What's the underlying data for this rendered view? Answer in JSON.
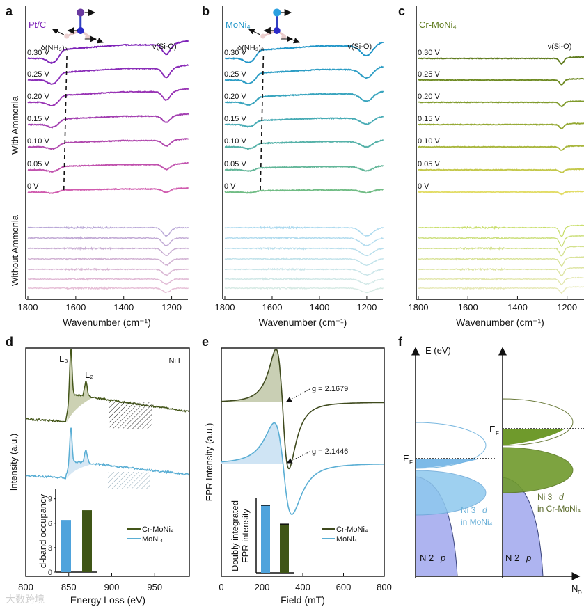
{
  "panel_labels": [
    "a",
    "b",
    "c",
    "d",
    "e",
    "f"
  ],
  "watermark": "大数跨境",
  "chart_data": [
    {
      "id": "a",
      "type": "line",
      "title": "Pt/C",
      "xlabel": "Wavenumber (cm⁻¹)",
      "xlim": [
        1800,
        1130
      ],
      "xticks": [
        "1800",
        "1600",
        "1400",
        "1200"
      ],
      "group_labels": [
        "With Ammonia",
        "Without Ammonia"
      ],
      "annotations": {
        "nh3": "δ(NH₃)ₐ",
        "sio": "ν(Si-O)"
      },
      "with_ammonia": [
        {
          "name": "0.30 V",
          "color": "#7d22b8",
          "step": 13,
          "dip": 14
        },
        {
          "name": "0.25 V",
          "color": "#8a2cb8",
          "step": 11,
          "dip": 13
        },
        {
          "name": "0.20 V",
          "color": "#9833b4",
          "step": 10,
          "dip": 12
        },
        {
          "name": "0.15 V",
          "color": "#a23db0",
          "step": 8,
          "dip": 9
        },
        {
          "name": "0.10 V",
          "color": "#b047ad",
          "step": 6,
          "dip": 8
        },
        {
          "name": "0.05 V",
          "color": "#c050ad",
          "step": 5,
          "dip": 7
        },
        {
          "name": "0 V",
          "color": "#d05aae",
          "step": 3,
          "dip": 5
        }
      ],
      "without_ammonia": [
        {
          "color": "#b8a6d6",
          "dip": 12
        },
        {
          "color": "#c0a8d4",
          "dip": 11
        },
        {
          "color": "#c8acd2",
          "dip": 10
        },
        {
          "color": "#d0b0d2",
          "dip": 9
        },
        {
          "color": "#d8b4d2",
          "dip": 8
        },
        {
          "color": "#e0b8d4",
          "dip": 7
        },
        {
          "color": "#e6bed6",
          "dip": 6
        }
      ]
    },
    {
      "id": "b",
      "type": "line",
      "title": "MoNi₄",
      "xlabel": "Wavenumber (cm⁻¹)",
      "xlim": [
        1800,
        1130
      ],
      "xticks": [
        "1800",
        "1600",
        "1400",
        "1200"
      ],
      "annotations": {
        "nh3": "δ(NH₃)ₐ",
        "sio": "ν(Si-O)"
      },
      "with_ammonia": [
        {
          "name": "0.30 V",
          "color": "#1f95c8",
          "step": 12,
          "dip": 15
        },
        {
          "name": "0.25 V",
          "color": "#2a9cc4",
          "step": 10,
          "dip": 13
        },
        {
          "name": "0.20 V",
          "color": "#36a3bd",
          "step": 8,
          "dip": 11
        },
        {
          "name": "0.15 V",
          "color": "#45aab4",
          "step": 6,
          "dip": 9
        },
        {
          "name": "0.10 V",
          "color": "#55b1a8",
          "step": 5,
          "dip": 8
        },
        {
          "name": "0.05 V",
          "color": "#62b698",
          "step": 3,
          "dip": 6
        },
        {
          "name": "0 V",
          "color": "#70bc84",
          "step": 2,
          "dip": 4
        }
      ],
      "without_ammonia": [
        {
          "color": "#a8d8ee",
          "dip": 12
        },
        {
          "color": "#b0dbee",
          "dip": 11
        },
        {
          "color": "#b8deec",
          "dip": 10
        },
        {
          "color": "#c0e2ea",
          "dip": 9
        },
        {
          "color": "#c8e4e8",
          "dip": 8
        },
        {
          "color": "#cfe7e6",
          "dip": 7
        },
        {
          "color": "#d6eae4",
          "dip": 6
        }
      ]
    },
    {
      "id": "c",
      "type": "line",
      "title": "Cr-MoNi₄",
      "xlabel": "Wavenumber (cm⁻¹)",
      "xlim": [
        1800,
        1130
      ],
      "xticks": [
        "1800",
        "1600",
        "1400",
        "1200"
      ],
      "annotations": {
        "sio": "ν(Si-O)"
      },
      "with_ammonia": [
        {
          "name": "0.30 V",
          "color": "#5e7a1c",
          "step": 0,
          "dip": 8
        },
        {
          "name": "0.25 V",
          "color": "#6e8a22",
          "step": 0,
          "dip": 7
        },
        {
          "name": "0.20 V",
          "color": "#7f9a2a",
          "step": 0,
          "dip": 6
        },
        {
          "name": "0.15 V",
          "color": "#94a832",
          "step": 0,
          "dip": 6
        },
        {
          "name": "0.10 V",
          "color": "#a8b63c",
          "step": 0,
          "dip": 5
        },
        {
          "name": "0.05 V",
          "color": "#c4c84a",
          "step": 0,
          "dip": 4
        },
        {
          "name": "0 V",
          "color": "#e2dc66",
          "step": 0,
          "dip": 3
        }
      ],
      "without_ammonia": [
        {
          "color": "#c8de6a",
          "dip": 13
        },
        {
          "color": "#ccdf7c",
          "dip": 12
        },
        {
          "color": "#d2e08a",
          "dip": 11
        },
        {
          "color": "#d8e296",
          "dip": 10
        },
        {
          "color": "#dde4a2",
          "dip": 9
        },
        {
          "color": "#e2e6ac",
          "dip": 8
        },
        {
          "color": "#e6e8b6",
          "dip": 7
        }
      ]
    },
    {
      "id": "d",
      "type": "line",
      "title": "Ni L",
      "xlabel": "Energy Loss (eV)",
      "ylabel": "Intensity (a.u.)",
      "xlim": [
        800,
        990
      ],
      "xticks": [
        "800",
        "850",
        "900",
        "950"
      ],
      "peaks": {
        "L3": "L₃",
        "L2": "L₂",
        "L3_eV": 852,
        "L2_eV": 870
      },
      "series": [
        {
          "name": "Cr-MoNi₄",
          "color": "#44561a",
          "fill": "#c3c9a6"
        },
        {
          "name": "MoNi₄",
          "color": "#5aaed4",
          "fill": "#cfe3f2"
        }
      ],
      "inset": {
        "type": "bar",
        "ylabel": "d-band occupancy",
        "yticks": [
          "0",
          "3",
          "6",
          "9"
        ],
        "ylim": [
          0,
          9.5
        ],
        "bars": [
          {
            "name": "MoNi₄",
            "value": 6.4,
            "color": "#4fa3dc"
          },
          {
            "name": "Cr-MoNi₄",
            "value": 7.6,
            "color": "#3f5516"
          }
        ]
      }
    },
    {
      "id": "e",
      "type": "line",
      "xlabel": "Field (mT)",
      "ylabel": "EPR Intensity (a.u.)",
      "xlim": [
        0,
        800
      ],
      "xticks": [
        "0",
        "200",
        "400",
        "600",
        "800"
      ],
      "series": [
        {
          "name": "Cr-MoNi₄",
          "color": "#3f4a1e",
          "fill": "#c9cfb4",
          "g_label": "g = 2.1679",
          "center_mT": 300
        },
        {
          "name": "MoNi₄",
          "color": "#5aaed4",
          "fill": "#cfe4f4",
          "g_label": "g = 2.1446",
          "center_mT": 303
        }
      ],
      "inset": {
        "type": "bar",
        "ylabel_lines": [
          "Doubly integrated",
          "EPR intensity"
        ],
        "bars": [
          {
            "name": "MoNi₄",
            "value": 1.0,
            "color": "#4fa3dc"
          },
          {
            "name": "Cr-MoNi₄",
            "value": 0.72,
            "color": "#3f5516"
          }
        ]
      }
    },
    {
      "id": "f",
      "type": "diagram",
      "yaxis_label": "E (eV)",
      "xaxis_label": "N",
      "xaxis_sub": "D",
      "ef_label": "E",
      "ef_sub": "F",
      "bands": [
        {
          "material": "MoNi₄",
          "line1": "Ni 3",
          "italic": "d",
          "line2": "in MoNi₄",
          "color": "#8ec8ee",
          "text_color": "#6ab0d8"
        },
        {
          "material": "Cr-MoNi₄",
          "line1": "Ni 3",
          "italic": "d",
          "line2": "in Cr-MoNi₄",
          "color": "#7fa03a",
          "text_color": "#5a6a2a"
        }
      ],
      "np_label": "N 2",
      "np_italic": "p",
      "np_color": "#aab0f0"
    }
  ]
}
